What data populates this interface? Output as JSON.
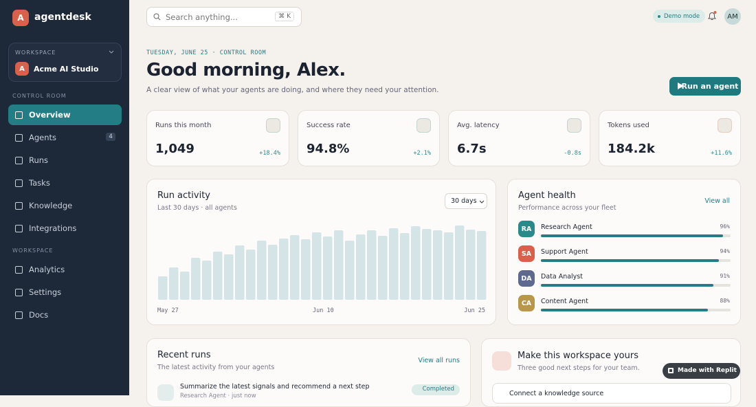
{
  "sidebar": {
    "brand_initial": "A",
    "brand": "agentdesk",
    "workspace_label": "WORKSPACE",
    "workspace_initial": "A",
    "workspace_name": "Acme AI Studio",
    "sections": [
      {
        "title": "CONTROL ROOM",
        "items": [
          {
            "label": "Overview",
            "active": true
          },
          {
            "label": "Agents",
            "badge": "4"
          },
          {
            "label": "Runs"
          },
          {
            "label": "Tasks"
          },
          {
            "label": "Knowledge"
          },
          {
            "label": "Integrations"
          }
        ]
      },
      {
        "title": "WORKSPACE",
        "items": [
          {
            "label": "Analytics"
          },
          {
            "label": "Settings"
          },
          {
            "label": "Docs"
          }
        ]
      }
    ]
  },
  "topbar": {
    "search_placeholder": "Search anything...",
    "shortcut": "⌘ K",
    "demo_badge": "Demo mode",
    "avatar": "AM"
  },
  "header": {
    "eyebrow": "TUESDAY, JUNE 25 · CONTROL ROOM",
    "title": "Good morning, Alex.",
    "subtitle": "A clear view of what your agents are doing, and where they need your attention.",
    "action": "Run an agent"
  },
  "stats": [
    {
      "label": "Runs this month",
      "value": "1,049",
      "change": "+18.4%",
      "color": "#2a8a8a"
    },
    {
      "label": "Success rate",
      "value": "94.8%",
      "change": "+2.1%",
      "color": "#2a8a8a"
    },
    {
      "label": "Avg. latency",
      "value": "6.7s",
      "change": "-0.8s",
      "color": "#2a8a8a"
    },
    {
      "label": "Tokens used",
      "value": "184.2k",
      "change": "+11.6%",
      "color": "#d9604a"
    }
  ],
  "run_activity": {
    "title": "Run activity",
    "subtitle": "Last 30 days · all agents",
    "range": "30 days",
    "values": [
      34,
      47,
      41,
      61,
      57,
      70,
      66,
      79,
      73,
      86,
      80,
      89,
      94,
      88,
      98,
      92,
      101,
      86,
      95,
      101,
      93,
      104,
      97,
      107,
      103,
      101,
      98,
      108,
      102,
      100
    ],
    "color": "#d5e5e7",
    "x_labels": [
      "May 27",
      "Jun 10",
      "Jun 25"
    ]
  },
  "agent_health": {
    "title": "Agent health",
    "subtitle": "Performance across your fleet",
    "link": "View all",
    "agents": [
      {
        "initials": "RA",
        "name": "Research Agent",
        "value": 96,
        "value_label": "96%",
        "color": "#2a8a8a"
      },
      {
        "initials": "SA",
        "name": "Support Agent",
        "value": 94,
        "value_label": "94%",
        "color": "#d9604a"
      },
      {
        "initials": "DA",
        "name": "Data Analyst",
        "value": 91,
        "value_label": "91%",
        "color": "#5d6a8e"
      },
      {
        "initials": "CA",
        "name": "Content Agent",
        "value": 88,
        "value_label": "88%",
        "color": "#b8974a"
      }
    ]
  },
  "recent_runs": {
    "title": "Recent runs",
    "subtitle": "The latest activity from your agents",
    "link": "View all runs",
    "items": [
      {
        "title": "Summarize the latest signals and recommend a next step",
        "meta": "Research Agent · just now",
        "status": "Completed"
      }
    ]
  },
  "setup": {
    "title": "Make this workspace yours",
    "subtitle": "Three good next steps for your team.",
    "steps": [
      "Connect a knowledge source"
    ]
  },
  "badge": {
    "label": "Made with Replit"
  }
}
